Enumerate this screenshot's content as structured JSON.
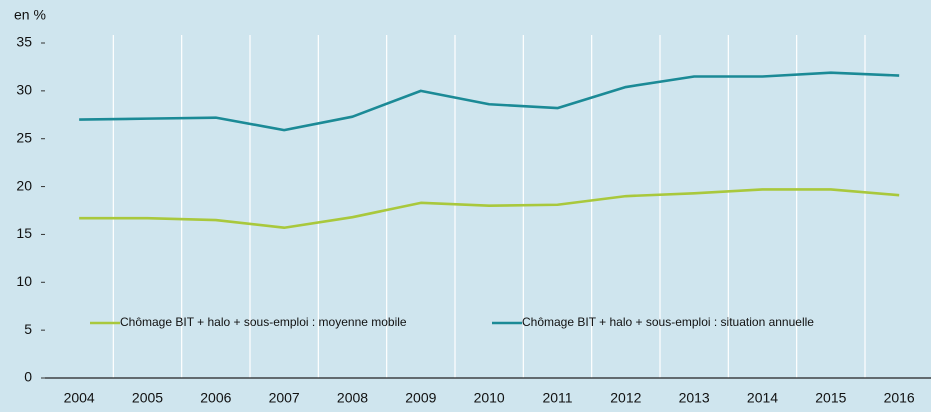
{
  "chart_data": {
    "type": "line",
    "y_label": "en %",
    "categories": [
      "2004",
      "2005",
      "2006",
      "2007",
      "2008",
      "2009",
      "2010",
      "2011",
      "2012",
      "2013",
      "2014",
      "2015",
      "2016"
    ],
    "series": [
      {
        "name": "Chômage BIT + halo + sous-emploi : moyenne mobile",
        "color": "#a9c83c",
        "values": [
          16.7,
          16.7,
          16.5,
          15.7,
          16.8,
          18.3,
          18.0,
          18.1,
          19.0,
          19.3,
          19.7,
          19.7,
          19.1
        ]
      },
      {
        "name": "Chômage BIT + halo + sous-emploi : situation annuelle",
        "color": "#1b8a96",
        "values": [
          27.0,
          27.1,
          27.2,
          25.9,
          27.3,
          30.0,
          28.6,
          28.2,
          30.4,
          31.5,
          31.5,
          31.9,
          31.6
        ]
      }
    ],
    "ylim": [
      0,
      35
    ],
    "yticks": [
      0,
      5,
      10,
      15,
      20,
      25,
      30,
      35
    ],
    "grid": false,
    "legend": "lower center"
  }
}
